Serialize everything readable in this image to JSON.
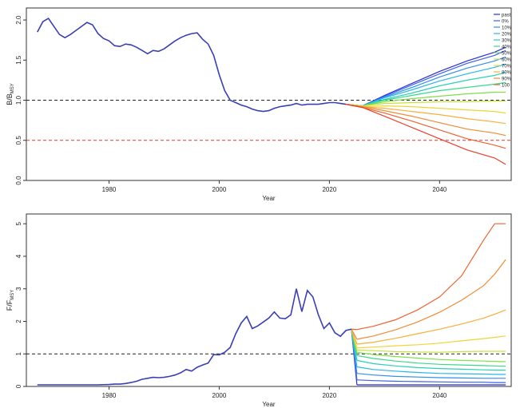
{
  "colors": {
    "history": "#3a3fb5",
    "ref_msy": "#222222",
    "ref_lim": "#e8352b",
    "scenarios": [
      "#2b2bd6",
      "#3c62e6",
      "#2f8ff0",
      "#27b8e6",
      "#2bd0b8",
      "#39d98a",
      "#7fe048",
      "#c6e23a",
      "#f0d437",
      "#f7b038",
      "#f28a33",
      "#ee6330",
      "#e8402b"
    ]
  },
  "chart_data": [
    {
      "type": "line",
      "panel": "top",
      "xlabel": "Year",
      "ylabel_main": "B/B",
      "ylabel_sub": "MSY",
      "xlim": [
        1965,
        2053
      ],
      "ylim": [
        0,
        2.15
      ],
      "xticks": [
        1980,
        2000,
        2020,
        2040
      ],
      "yticks": [
        "0.0",
        "0.5",
        "1.0",
        "1.5",
        "2.0"
      ],
      "ref_lines": [
        {
          "y": 1.0,
          "style": "dashed",
          "color": "black"
        },
        {
          "y": 0.5,
          "style": "dashed",
          "color": "red"
        }
      ],
      "legend_position": "right",
      "legend": [
        "past",
        "0%",
        "10%",
        "20%",
        "30%",
        "40%",
        "50%",
        "60%",
        "70%",
        "80%",
        "90%",
        "100"
      ],
      "history": {
        "x": [
          1967,
          1968,
          1969,
          1970,
          1971,
          1972,
          1973,
          1974,
          1975,
          1976,
          1977,
          1978,
          1979,
          1980,
          1981,
          1982,
          1983,
          1984,
          1985,
          1986,
          1987,
          1988,
          1989,
          1990,
          1991,
          1992,
          1993,
          1994,
          1995,
          1996,
          1997,
          1998,
          1999,
          2000,
          2001,
          2002,
          2003,
          2004,
          2005,
          2006,
          2007,
          2008,
          2009,
          2010,
          2011,
          2012,
          2013,
          2014,
          2015,
          2016,
          2017,
          2018,
          2019,
          2020,
          2021,
          2022,
          2023
        ],
        "y": [
          1.85,
          1.98,
          2.02,
          1.92,
          1.82,
          1.78,
          1.82,
          1.87,
          1.92,
          1.97,
          1.94,
          1.83,
          1.77,
          1.74,
          1.68,
          1.67,
          1.7,
          1.69,
          1.66,
          1.62,
          1.58,
          1.62,
          1.61,
          1.64,
          1.69,
          1.74,
          1.78,
          1.81,
          1.83,
          1.84,
          1.76,
          1.7,
          1.56,
          1.32,
          1.12,
          1.0,
          0.97,
          0.94,
          0.92,
          0.89,
          0.87,
          0.86,
          0.87,
          0.9,
          0.92,
          0.93,
          0.94,
          0.96,
          0.94,
          0.95,
          0.95,
          0.95,
          0.96,
          0.97,
          0.97,
          0.96,
          0.95
        ]
      },
      "projection_x": [
        2023,
        2026,
        2030,
        2035,
        2040,
        2045,
        2050,
        2052
      ],
      "projections": [
        {
          "name": "past",
          "y": [
            0.95,
            0.93,
            1.06,
            1.21,
            1.36,
            1.49,
            1.6,
            1.66
          ]
        },
        {
          "name": "0%",
          "y": [
            0.95,
            0.93,
            1.05,
            1.19,
            1.33,
            1.46,
            1.56,
            1.62
          ]
        },
        {
          "name": "10%",
          "y": [
            0.95,
            0.93,
            1.04,
            1.16,
            1.29,
            1.4,
            1.49,
            1.54
          ]
        },
        {
          "name": "20%",
          "y": [
            0.95,
            0.93,
            1.03,
            1.13,
            1.24,
            1.33,
            1.41,
            1.45
          ]
        },
        {
          "name": "30%",
          "y": [
            0.95,
            0.93,
            1.01,
            1.09,
            1.18,
            1.25,
            1.31,
            1.35
          ]
        },
        {
          "name": "40%",
          "y": [
            0.95,
            0.93,
            1.0,
            1.06,
            1.12,
            1.16,
            1.2,
            1.22
          ]
        },
        {
          "name": "50%",
          "y": [
            0.95,
            0.93,
            0.98,
            1.02,
            1.05,
            1.08,
            1.1,
            1.1
          ]
        },
        {
          "name": "60%",
          "y": [
            0.95,
            0.93,
            0.96,
            0.97,
            0.98,
            0.98,
            0.99,
            0.99
          ]
        },
        {
          "name": "70%",
          "y": [
            0.95,
            0.92,
            0.93,
            0.92,
            0.9,
            0.88,
            0.86,
            0.84
          ]
        },
        {
          "name": "80%",
          "y": [
            0.95,
            0.92,
            0.9,
            0.86,
            0.82,
            0.77,
            0.73,
            0.71
          ]
        },
        {
          "name": "90%",
          "y": [
            0.95,
            0.92,
            0.87,
            0.8,
            0.72,
            0.64,
            0.59,
            0.56
          ]
        },
        {
          "name": "100",
          "y": [
            0.95,
            0.91,
            0.84,
            0.74,
            0.63,
            0.52,
            0.44,
            0.4
          ]
        },
        {
          "name": "",
          "y": [
            0.95,
            0.91,
            0.8,
            0.66,
            0.52,
            0.38,
            0.28,
            0.2
          ]
        }
      ]
    },
    {
      "type": "line",
      "panel": "bottom",
      "xlabel": "Year",
      "ylabel_main": "F/F",
      "ylabel_sub": "MSY",
      "xlim": [
        1965,
        2053
      ],
      "ylim": [
        0,
        5.3
      ],
      "xticks": [
        1980,
        2000,
        2020,
        2040
      ],
      "yticks": [
        "0",
        "1",
        "2",
        "3",
        "4",
        "5"
      ],
      "ref_lines": [
        {
          "y": 1.0,
          "style": "dashed",
          "color": "black"
        }
      ],
      "history": {
        "x": [
          1967,
          1968,
          1970,
          1972,
          1974,
          1976,
          1978,
          1980,
          1981,
          1982,
          1983,
          1984,
          1985,
          1986,
          1987,
          1988,
          1989,
          1990,
          1991,
          1992,
          1993,
          1994,
          1995,
          1996,
          1997,
          1998,
          1999,
          2000,
          2001,
          2002,
          2003,
          2004,
          2005,
          2006,
          2007,
          2008,
          2009,
          2010,
          2011,
          2012,
          2013,
          2014,
          2015,
          2016,
          2017,
          2018,
          2019,
          2020,
          2021,
          2022,
          2023,
          2024
        ],
        "y": [
          0.05,
          0.05,
          0.05,
          0.05,
          0.05,
          0.05,
          0.05,
          0.06,
          0.07,
          0.07,
          0.09,
          0.12,
          0.16,
          0.22,
          0.25,
          0.28,
          0.27,
          0.28,
          0.31,
          0.35,
          0.42,
          0.52,
          0.47,
          0.59,
          0.66,
          0.72,
          0.98,
          0.97,
          1.05,
          1.2,
          1.62,
          1.95,
          2.15,
          1.78,
          1.86,
          1.98,
          2.1,
          2.29,
          2.1,
          2.08,
          2.2,
          3.0,
          2.3,
          2.95,
          2.75,
          2.2,
          1.78,
          1.95,
          1.65,
          1.54,
          1.72,
          1.76
        ]
      },
      "drop_x": [
        2024,
        2025
      ],
      "projection_x": [
        2025,
        2028,
        2032,
        2036,
        2040,
        2044,
        2048,
        2050,
        2052
      ],
      "projections": [
        {
          "name": "past",
          "y": [
            0.05,
            0.05,
            0.05,
            0.05,
            0.05,
            0.05,
            0.05,
            0.05,
            0.05
          ]
        },
        {
          "name": "0%",
          "y": [
            0.2,
            0.18,
            0.16,
            0.15,
            0.14,
            0.13,
            0.13,
            0.12,
            0.12
          ]
        },
        {
          "name": "10%",
          "y": [
            0.4,
            0.35,
            0.31,
            0.29,
            0.27,
            0.26,
            0.25,
            0.25,
            0.25
          ]
        },
        {
          "name": "20%",
          "y": [
            0.6,
            0.52,
            0.47,
            0.43,
            0.4,
            0.39,
            0.38,
            0.37,
            0.37
          ]
        },
        {
          "name": "30%",
          "y": [
            0.8,
            0.7,
            0.63,
            0.58,
            0.55,
            0.53,
            0.51,
            0.5,
            0.5
          ]
        },
        {
          "name": "40%",
          "y": [
            0.95,
            0.86,
            0.78,
            0.72,
            0.68,
            0.66,
            0.64,
            0.63,
            0.62
          ]
        },
        {
          "name": "50%",
          "y": [
            1.05,
            0.98,
            0.92,
            0.87,
            0.83,
            0.8,
            0.78,
            0.77,
            0.76
          ]
        },
        {
          "name": "60%",
          "y": [
            1.12,
            1.1,
            1.07,
            1.06,
            1.05,
            1.07,
            1.08,
            1.08,
            1.08
          ]
        },
        {
          "name": "70%",
          "y": [
            1.18,
            1.21,
            1.25,
            1.28,
            1.33,
            1.4,
            1.47,
            1.51,
            1.55
          ]
        },
        {
          "name": "80%",
          "y": [
            1.3,
            1.36,
            1.48,
            1.62,
            1.76,
            1.92,
            2.1,
            2.22,
            2.35
          ]
        },
        {
          "name": "90%",
          "y": [
            1.45,
            1.55,
            1.74,
            1.98,
            2.28,
            2.65,
            3.1,
            3.45,
            3.9
          ]
        },
        {
          "name": "100",
          "y": [
            1.75,
            1.85,
            2.05,
            2.35,
            2.75,
            3.4,
            4.5,
            5.0,
            5.0
          ]
        }
      ]
    }
  ]
}
